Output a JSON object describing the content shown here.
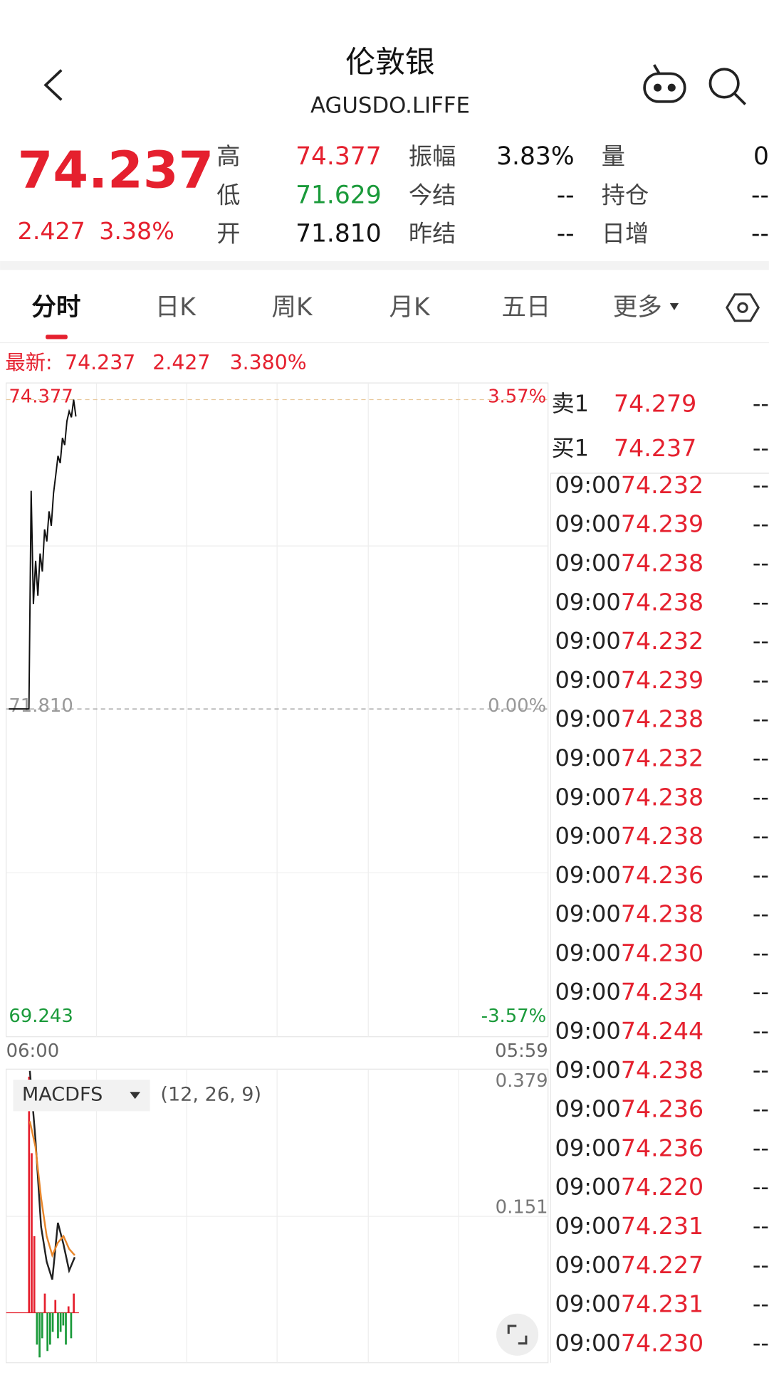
{
  "header": {
    "title": "伦敦银",
    "code": "AGUSDO.LIFFE"
  },
  "quote": {
    "price": "74.237",
    "change": "2.427",
    "change_pct": "3.38%",
    "stats": [
      [
        {
          "label": "高",
          "value": "74.377"
        },
        {
          "label": "低",
          "value": "71.629"
        },
        {
          "label": "开",
          "value": "71.810"
        }
      ],
      [
        {
          "label": "振幅",
          "value": "3.83%"
        },
        {
          "label": "今结",
          "value": "--"
        },
        {
          "label": "昨结",
          "value": "--"
        }
      ],
      [
        {
          "label": "量",
          "value": "0"
        },
        {
          "label": "持仓",
          "value": "--"
        },
        {
          "label": "日增",
          "value": "--"
        }
      ]
    ]
  },
  "tabs": [
    "分时",
    "日K",
    "周K",
    "月K",
    "五日",
    "更多"
  ],
  "latest": {
    "label": "最新:",
    "price": "74.237",
    "change": "2.427",
    "change_pct": "3.380%"
  },
  "intraday": {
    "high_label": "74.377",
    "high_pct": "3.57%",
    "base_label": "71.810",
    "base_pct": "0.00%",
    "low_label": "69.243",
    "low_pct": "-3.57%",
    "start_time": "06:00",
    "end_time": "05:59",
    "price": [
      71.81,
      71.81,
      71.81,
      71.81,
      71.81,
      71.81,
      71.81,
      71.81,
      71.81,
      71.81,
      73.62,
      72.68,
      73.04,
      72.75,
      73.1,
      72.95,
      73.3,
      73.2,
      73.45,
      73.33,
      73.6,
      73.75,
      73.91,
      73.85,
      74.06,
      74.0,
      74.2,
      74.28,
      74.23,
      74.377,
      74.237
    ]
  },
  "macd": {
    "name": "MACDFS",
    "params": "(12, 26, 9)",
    "top_label": "0.379",
    "mid_label": "0.151",
    "dif": [
      0.379,
      0.272,
      0.135,
      0.08,
      0.052,
      0.141,
      0.107,
      0.066,
      0.087
    ],
    "dea": [
      0.3,
      0.26,
      0.18,
      0.12,
      0.09,
      0.11,
      0.12,
      0.1,
      0.09
    ],
    "histogram": [
      0.37,
      0.25,
      0.12,
      -0.05,
      -0.07,
      -0.04,
      0.03,
      -0.06,
      -0.05,
      -0.03,
      0.02,
      -0.04,
      -0.03,
      -0.02,
      -0.05,
      0.01,
      -0.04,
      0.03
    ]
  },
  "order_book": [
    {
      "side": "卖1",
      "price": "74.279",
      "volume": "--"
    },
    {
      "side": "买1",
      "price": "74.237",
      "volume": "--"
    }
  ],
  "trades": [
    {
      "time": "09:00",
      "price": "74.232",
      "volume": "--"
    },
    {
      "time": "09:00",
      "price": "74.239",
      "volume": "--"
    },
    {
      "time": "09:00",
      "price": "74.238",
      "volume": "--"
    },
    {
      "time": "09:00",
      "price": "74.238",
      "volume": "--"
    },
    {
      "time": "09:00",
      "price": "74.232",
      "volume": "--"
    },
    {
      "time": "09:00",
      "price": "74.239",
      "volume": "--"
    },
    {
      "time": "09:00",
      "price": "74.238",
      "volume": "--"
    },
    {
      "time": "09:00",
      "price": "74.232",
      "volume": "--"
    },
    {
      "time": "09:00",
      "price": "74.238",
      "volume": "--"
    },
    {
      "time": "09:00",
      "price": "74.238",
      "volume": "--"
    },
    {
      "time": "09:00",
      "price": "74.236",
      "volume": "--"
    },
    {
      "time": "09:00",
      "price": "74.238",
      "volume": "--"
    },
    {
      "time": "09:00",
      "price": "74.230",
      "volume": "--"
    },
    {
      "time": "09:00",
      "price": "74.234",
      "volume": "--"
    },
    {
      "time": "09:00",
      "price": "74.244",
      "volume": "--"
    },
    {
      "time": "09:00",
      "price": "74.238",
      "volume": "--"
    },
    {
      "time": "09:00",
      "price": "74.236",
      "volume": "--"
    },
    {
      "time": "09:00",
      "price": "74.236",
      "volume": "--"
    },
    {
      "time": "09:00",
      "price": "74.220",
      "volume": "--"
    },
    {
      "time": "09:00",
      "price": "74.231",
      "volume": "--"
    },
    {
      "time": "09:00",
      "price": "74.227",
      "volume": "--"
    },
    {
      "time": "09:00",
      "price": "74.231",
      "volume": "--"
    },
    {
      "time": "09:00",
      "price": "74.230",
      "volume": "--"
    }
  ]
}
